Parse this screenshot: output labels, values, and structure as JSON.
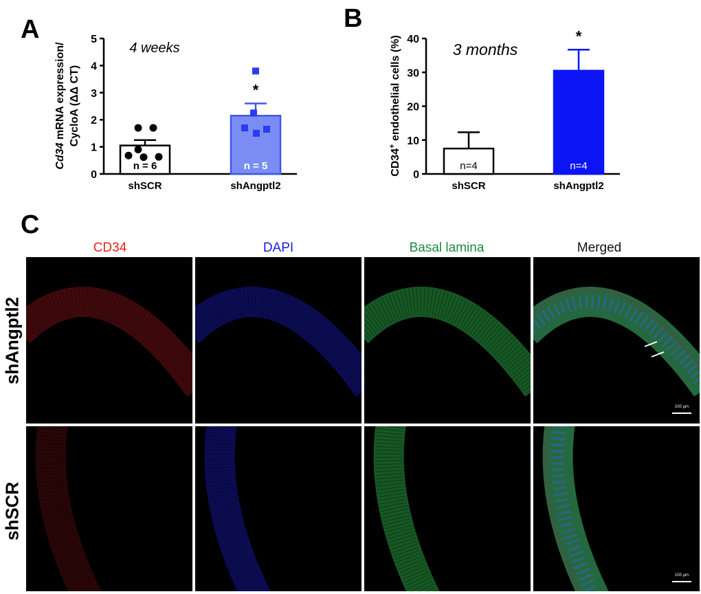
{
  "panels": {
    "a_letter": "A",
    "b_letter": "B",
    "c_letter": "C"
  },
  "chart_data": [
    {
      "type": "bar",
      "panel": "A",
      "annotation": "4 weeks",
      "ylabel_italic": "Cd34",
      "ylabel_rest": " mRNA expression/",
      "ylabel_line2": "CycloA (ΔΔ CT)",
      "categories": [
        "shSCR",
        "shAngptl2"
      ],
      "values": [
        1.05,
        2.15
      ],
      "errors": [
        0.2,
        0.45
      ],
      "n_labels": [
        "n = 6",
        "n = 5"
      ],
      "significance": [
        "",
        "*"
      ],
      "points": [
        [
          0.68,
          0.62,
          0.63,
          0.9,
          1.7,
          1.7
        ],
        [
          3.8,
          2.25,
          1.7,
          1.65,
          1.5
        ]
      ],
      "ylim": [
        0,
        5
      ],
      "yticks": [
        0,
        1,
        2,
        3,
        4,
        5
      ],
      "colors": {
        "bar1_fill": "#ffffff",
        "bar2_fill": "#7b8df5",
        "bar2_edge": "#3f57e8",
        "points2": "#2a3cf0"
      }
    },
    {
      "type": "bar",
      "panel": "B",
      "annotation": "3 months",
      "ylabel_pre": "CD34",
      "ylabel_sup": "+",
      "ylabel_post": " endothelial cells (%)",
      "categories": [
        "shSCR",
        "shAngptl2"
      ],
      "values": [
        7.5,
        30.5
      ],
      "errors": [
        4.8,
        6.2
      ],
      "n_labels": [
        "n=4",
        "n=4"
      ],
      "significance": [
        "",
        "*"
      ],
      "ylim": [
        0,
        40
      ],
      "yticks": [
        0,
        10,
        20,
        30,
        40
      ],
      "colors": {
        "bar1_fill": "#ffffff",
        "bar2_fill": "#0a14f5"
      }
    }
  ],
  "micrograph": {
    "columns": [
      "CD34",
      "DAPI",
      "Basal lamina",
      "Merged"
    ],
    "column_colors": [
      "#e8211d",
      "#1a1ae0",
      "#1e8a3c",
      "#111111"
    ],
    "rows": [
      "shAngptl2",
      "shSCR"
    ],
    "scale_text": "100 µm"
  }
}
